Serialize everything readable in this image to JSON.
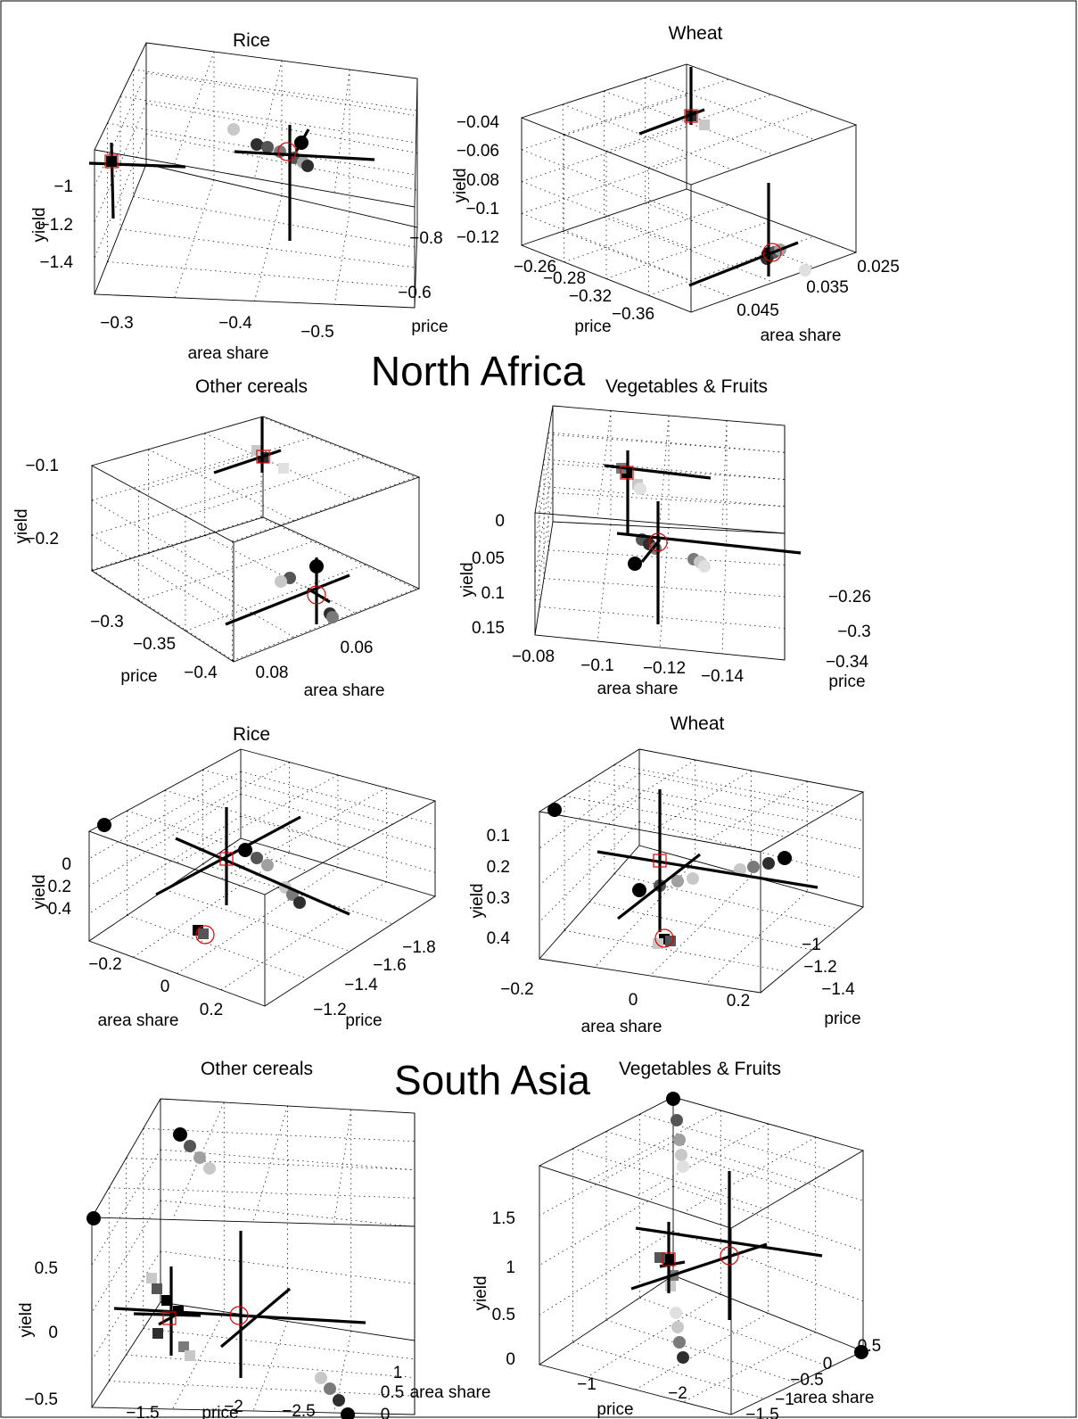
{
  "chart_data": [
    {
      "type": "scatter",
      "title": "Rice",
      "region": "North Africa",
      "panel": 0,
      "x_label": "area share",
      "y_label": "price",
      "z_label": "yield",
      "ticks": {
        "x": [
          "−0.3",
          "−0.4",
          "−0.5"
        ],
        "y": [
          "−0.6",
          "−0.8"
        ],
        "z": [
          "−1",
          "−1.2",
          "−1.4"
        ]
      }
    },
    {
      "type": "scatter",
      "title": "Wheat",
      "region": "North Africa",
      "panel": 1,
      "x_label": "area share",
      "y_label": "price",
      "z_label": "yield",
      "ticks": {
        "x": [
          "0.025",
          "0.035",
          "0.045"
        ],
        "y": [
          "−0.26",
          "−0.28",
          "−0.32",
          "−0.36"
        ],
        "z": [
          "−0.04",
          "−0.06",
          "−0.08",
          "−0.1",
          "−0.12"
        ]
      }
    },
    {
      "type": "scatter",
      "title": "Other cereals",
      "region": "North Africa",
      "panel": 2,
      "x_label": "area share",
      "y_label": "price",
      "z_label": "yield",
      "ticks": {
        "x": [
          "0.06",
          "0.08"
        ],
        "y": [
          "−0.3",
          "−0.35",
          "−0.4"
        ],
        "z": [
          "−0.1",
          "−0.2"
        ]
      }
    },
    {
      "type": "scatter",
      "title": "Vegetables & Fruits",
      "region": "North Africa",
      "panel": 3,
      "x_label": "area share",
      "y_label": "price",
      "z_label": "yield",
      "ticks": {
        "x": [
          "−0.08",
          "−0.1",
          "−0.12",
          "−0.14"
        ],
        "y": [
          "−0.26",
          "−0.3",
          "−0.34"
        ],
        "z": [
          "0",
          "0.05",
          "0.1",
          "0.15"
        ]
      }
    },
    {
      "type": "scatter",
      "title": "Rice",
      "region": "South Asia",
      "panel": 4,
      "x_label": "area share",
      "y_label": "price",
      "z_label": "yield",
      "ticks": {
        "x": [
          "−0.2",
          "0",
          "0.2"
        ],
        "y": [
          "−1.2",
          "−1.4",
          "−1.6",
          "−1.8"
        ],
        "z": [
          "0",
          "0.2",
          "0.4"
        ]
      }
    },
    {
      "type": "scatter",
      "title": "Wheat",
      "region": "South Asia",
      "panel": 5,
      "x_label": "area share",
      "y_label": "price",
      "z_label": "yield",
      "ticks": {
        "x": [
          "−0.2",
          "0",
          "0.2"
        ],
        "y": [
          "−1",
          "−1.2",
          "−1.4"
        ],
        "z": [
          "0.1",
          "0.2",
          "0.3",
          "0.4"
        ]
      }
    },
    {
      "type": "scatter",
      "title": "Other cereals",
      "region": "South Asia",
      "panel": 6,
      "x_label": "price",
      "y_label": "area share",
      "z_label": "yield",
      "ticks": {
        "x": [
          "−1.5",
          "−2",
          "−2.5"
        ],
        "y": [
          "0",
          "0.5",
          "1"
        ],
        "z": [
          "−0.5",
          "0",
          "0.5"
        ]
      }
    },
    {
      "type": "scatter",
      "title": "Vegetables & Fruits",
      "region": "South Asia",
      "panel": 7,
      "x_label": "price",
      "y_label": "area share",
      "z_label": "yield",
      "ticks": {
        "x": [
          "−1",
          "−2"
        ],
        "y": [
          "−1.5",
          "−1",
          "−0.5",
          "0",
          "0.5"
        ],
        "z": [
          "0",
          "0.5",
          "1",
          "1.5"
        ]
      }
    }
  ],
  "regions": [
    "North Africa",
    "South Asia"
  ]
}
